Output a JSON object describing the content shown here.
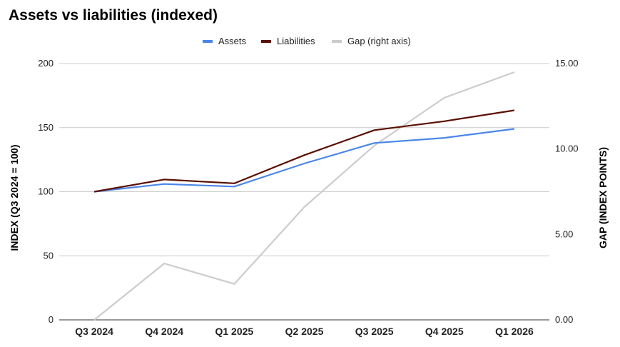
{
  "chart_data": {
    "type": "line",
    "title": "Assets vs liabilities (indexed)",
    "categories": [
      "Q3 2024",
      "Q4 2024",
      "Q1 2025",
      "Q2 2025",
      "Q3 2025",
      "Q4 2025",
      "Q1 2026"
    ],
    "ylabel": "INDEX (Q3 2024 = 100)",
    "y2label": "GAP (INDEX POINTS)",
    "ylim": [
      0,
      200
    ],
    "y2lim": [
      0,
      15
    ],
    "yticks": [
      "0",
      "50",
      "100",
      "150",
      "200"
    ],
    "y2ticks": [
      "0.00",
      "5.00",
      "10.00",
      "15.00"
    ],
    "grid": true,
    "legend_position": "top-center",
    "series": [
      {
        "name": "Assets",
        "axis": "left",
        "color": "#4a86e8",
        "values": [
          100,
          106,
          104,
          122,
          138,
          142,
          149
        ]
      },
      {
        "name": "Liabilities",
        "axis": "left",
        "color": "#5b0f00",
        "values": [
          100,
          109.5,
          106.5,
          128.5,
          148,
          155,
          163.5
        ]
      },
      {
        "name": "Gap (right axis)",
        "axis": "right",
        "color": "#cccccc",
        "values": [
          0,
          3.3,
          2.1,
          6.6,
          10.2,
          13.0,
          14.5
        ]
      }
    ]
  }
}
